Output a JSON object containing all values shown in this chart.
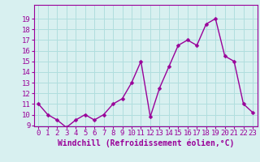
{
  "x": [
    0,
    1,
    2,
    3,
    4,
    5,
    6,
    7,
    8,
    9,
    10,
    11,
    12,
    13,
    14,
    15,
    16,
    17,
    18,
    19,
    20,
    21,
    22,
    23
  ],
  "y": [
    11,
    10,
    9.5,
    8.8,
    9.5,
    10,
    9.5,
    10,
    11,
    11.5,
    13,
    15,
    9.8,
    12.5,
    14.5,
    16.5,
    17,
    16.5,
    18.5,
    19,
    15.5,
    15,
    11,
    10.2
  ],
  "line_color": "#990099",
  "marker_color": "#990099",
  "bg_color": "#d8f0f0",
  "grid_color": "#b0dede",
  "xlabel": "Windchill (Refroidissement éolien,°C)",
  "ylim": [
    9,
    20
  ],
  "xlim": [
    -0.5,
    23.5
  ],
  "yticks": [
    9,
    10,
    11,
    12,
    13,
    14,
    15,
    16,
    17,
    18,
    19
  ],
  "xticks": [
    0,
    1,
    2,
    3,
    4,
    5,
    6,
    7,
    8,
    9,
    10,
    11,
    12,
    13,
    14,
    15,
    16,
    17,
    18,
    19,
    20,
    21,
    22,
    23
  ],
  "xlabel_fontsize": 7,
  "tick_fontsize": 6.5,
  "line_width": 1.0,
  "marker_size": 2.5
}
